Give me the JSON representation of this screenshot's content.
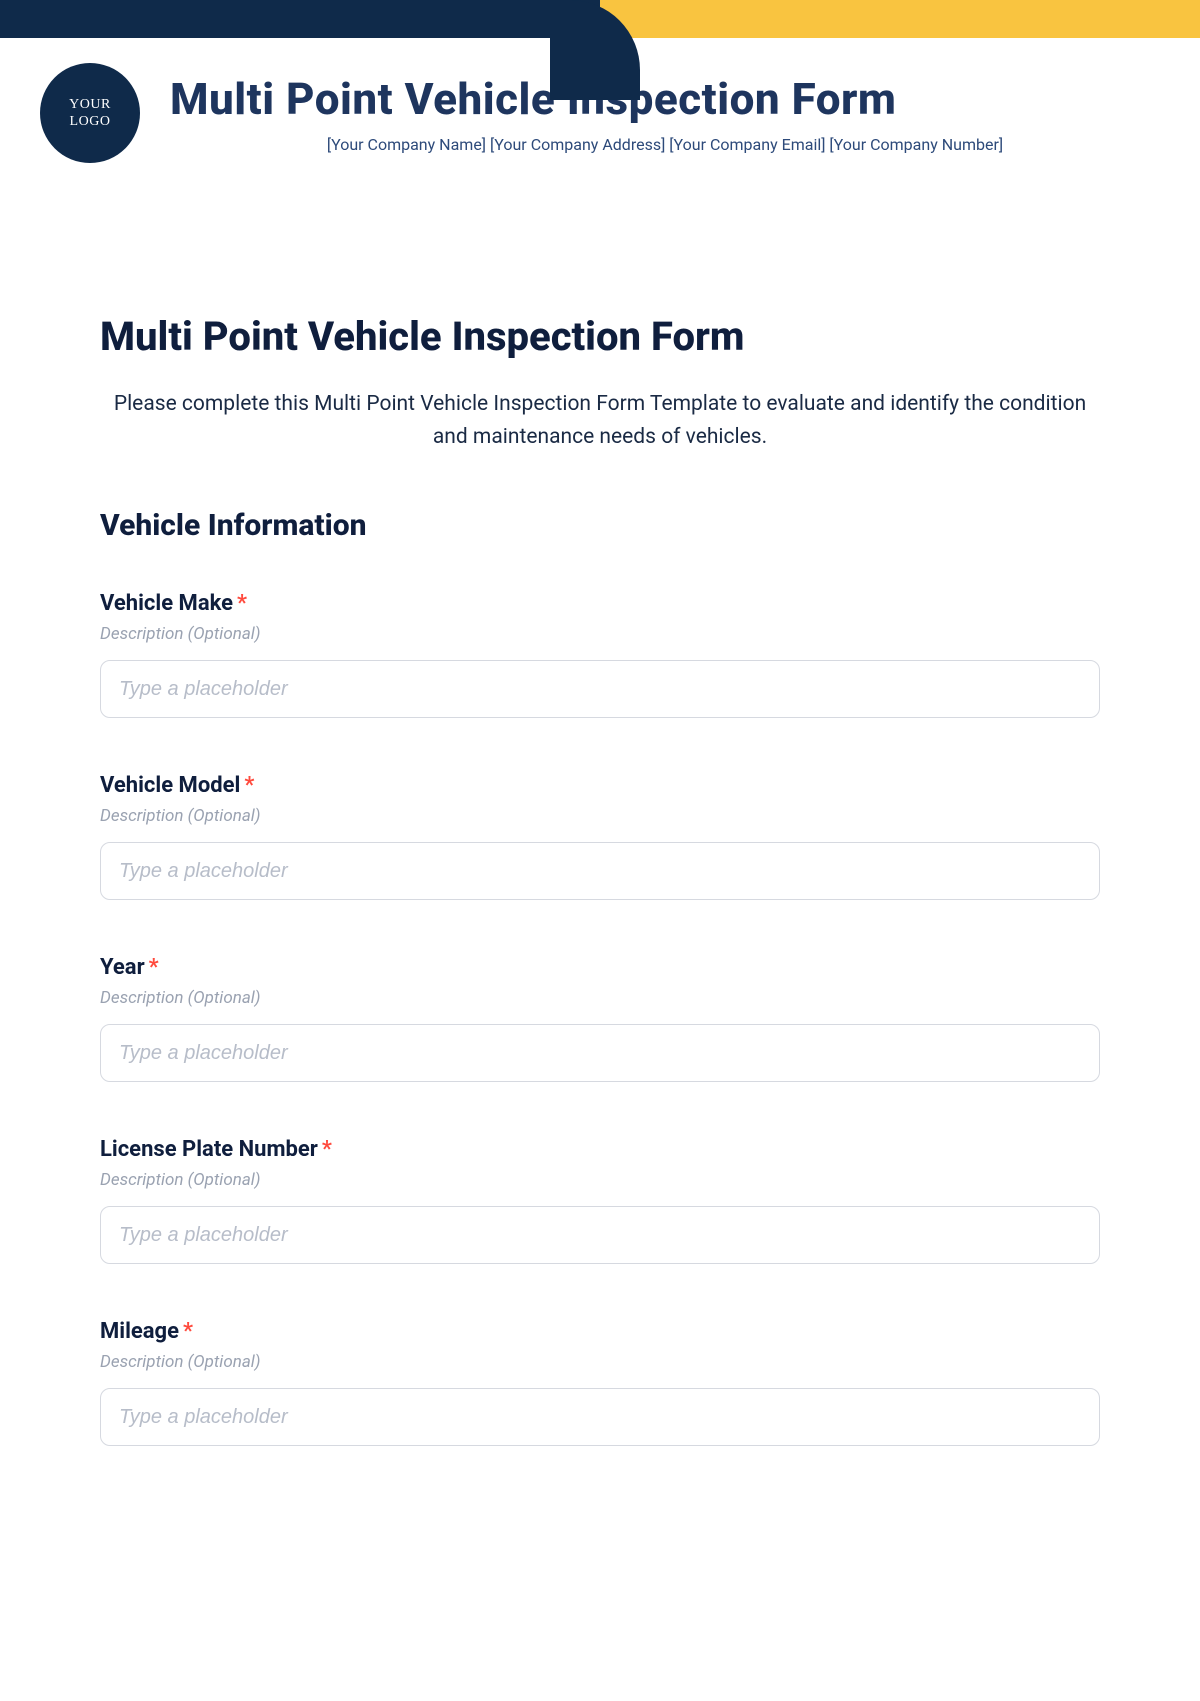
{
  "colors": {
    "banner_navy": "#0f2a4a",
    "banner_yellow": "#f9c440",
    "title_navy": "#1e355e",
    "sub_navy": "#2d4a7a",
    "text_dark": "#0f1e3d",
    "required_red": "#ff4a3d",
    "desc_gray": "#9aa2b1",
    "placeholder_gray": "#b7bdc9",
    "input_border": "#d6d9e0",
    "background": "#ffffff"
  },
  "header": {
    "logo_text": "YOUR\nLOGO",
    "title": "Multi Point Vehicle Inspection Form",
    "subline": "[Your Company Name] [Your Company Address] [Your Company Email] [Your Company Number]"
  },
  "form": {
    "title": "Multi Point Vehicle Inspection Form",
    "intro": "Please complete this Multi Point Vehicle Inspection Form Template to evaluate and identify the condition and maintenance needs of vehicles.",
    "section_title": "Vehicle Information",
    "required_mark": "*",
    "description_label": "Description (Optional)",
    "input_placeholder": "Type a placeholder",
    "fields": [
      {
        "label": "Vehicle Make",
        "required": true
      },
      {
        "label": "Vehicle Model",
        "required": true
      },
      {
        "label": "Year",
        "required": true
      },
      {
        "label": "License Plate Number",
        "required": true
      },
      {
        "label": "Mileage",
        "required": true
      }
    ]
  }
}
